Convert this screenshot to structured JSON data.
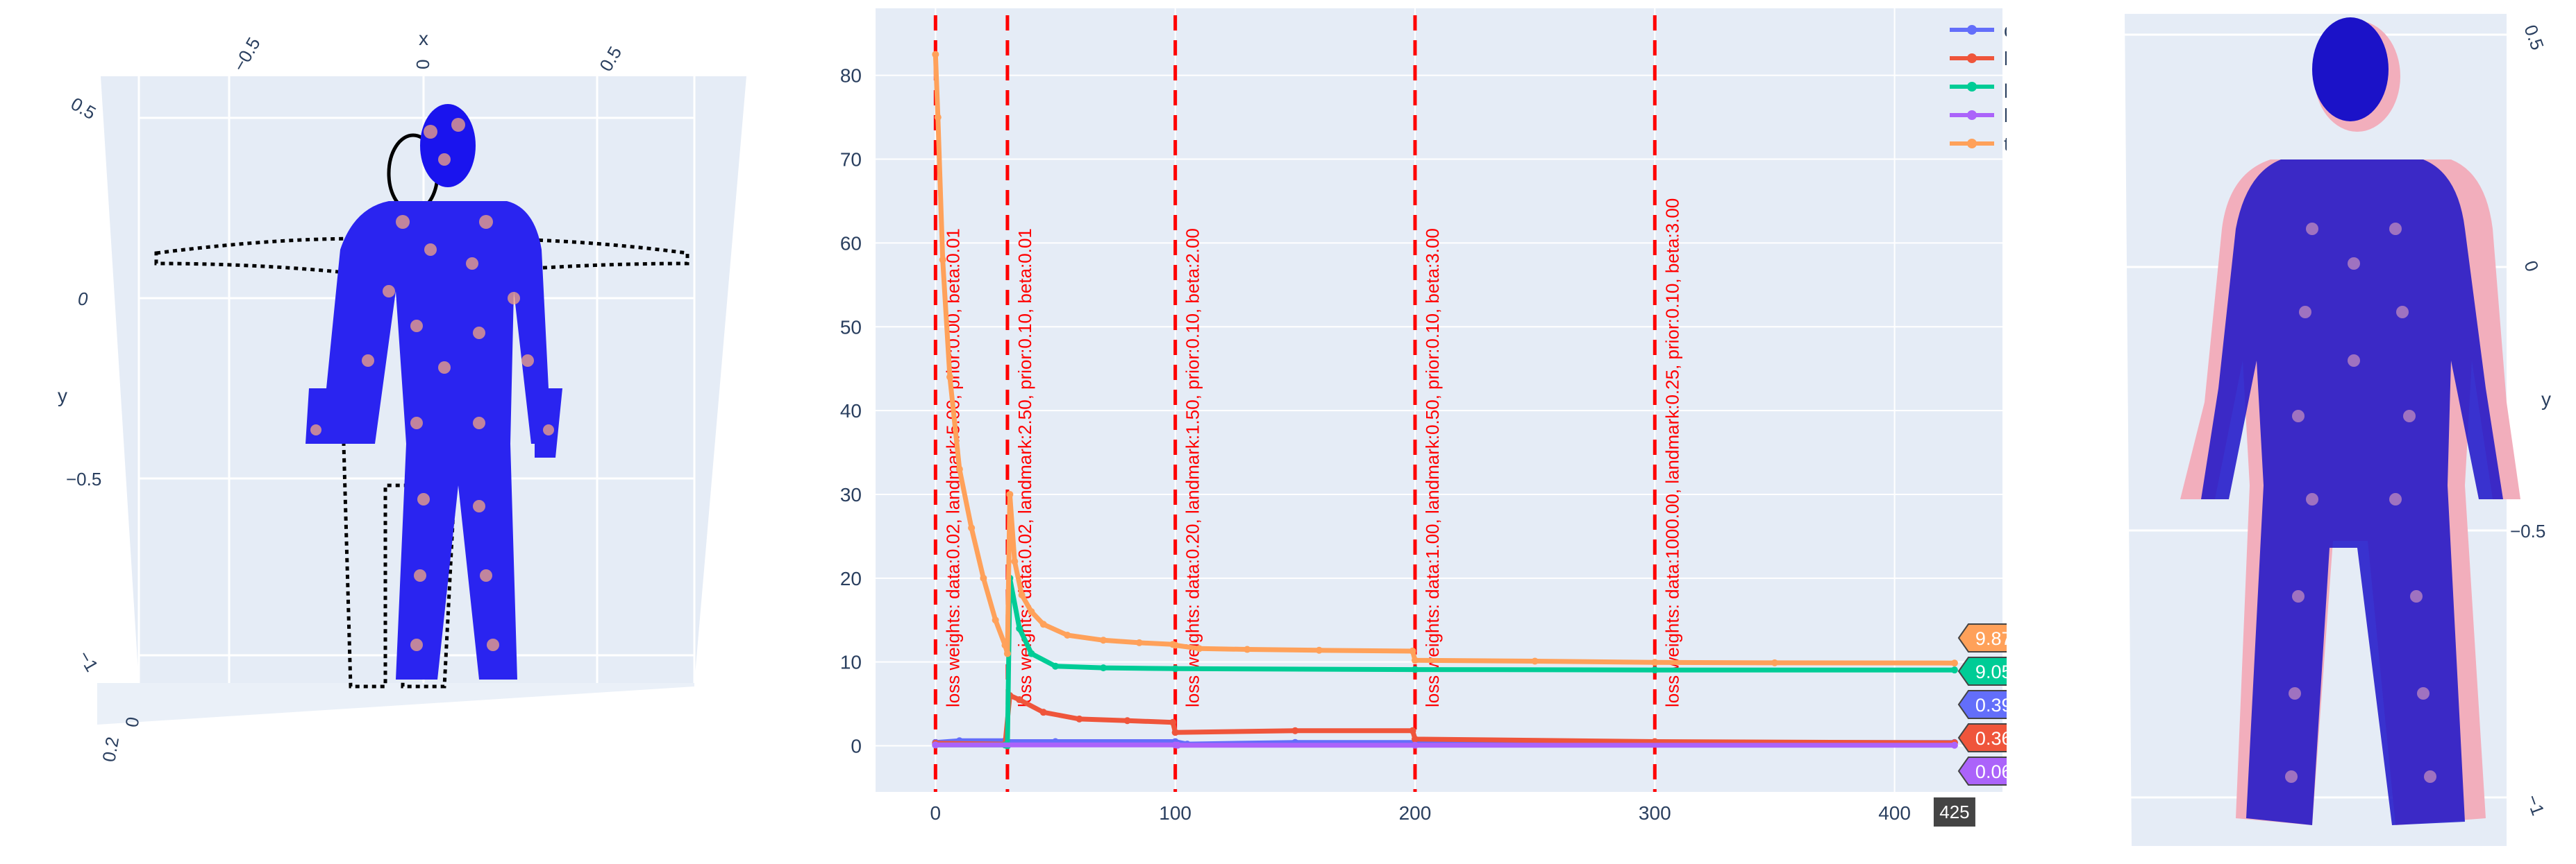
{
  "left_scene": {
    "x_title": "x",
    "y_title": "y",
    "x_ticks": [
      "−0.5",
      "0",
      "0.5"
    ],
    "y_ticks": [
      "0.5",
      "0",
      "−0.5",
      "−1"
    ],
    "z_ticks": [
      "0.2",
      "0"
    ],
    "colors": {
      "background": "#e5ecf6",
      "scan": "#000000",
      "model": "#1a14ee",
      "landmark": "#f4a582"
    }
  },
  "right_scene": {
    "y_title": "y",
    "y_ticks": [
      "0.5",
      "0",
      "−0.5",
      "−1"
    ],
    "colors": {
      "background": "#e5ecf6",
      "mesh": "#f2aebc",
      "points": "#1b12c8"
    }
  },
  "chart_data": {
    "type": "line",
    "x_range": [
      -25,
      445
    ],
    "y_range": [
      -5.5,
      88
    ],
    "x_ticks": [
      0,
      100,
      200,
      300,
      400
    ],
    "y_ticks": [
      0,
      10,
      20,
      30,
      40,
      50,
      60,
      70,
      80
    ],
    "x_label_extra": "425",
    "grid": true,
    "legend_placement": "top-right",
    "series": [
      {
        "name": "data",
        "color": "#636efa",
        "points": [
          [
            0,
            0.4
          ],
          [
            10,
            0.6
          ],
          [
            29,
            0.6
          ],
          [
            30,
            0.5
          ],
          [
            50,
            0.5
          ],
          [
            100,
            0.5
          ],
          [
            105,
            0.2
          ],
          [
            150,
            0.4
          ],
          [
            200,
            0.4
          ],
          [
            300,
            0.4
          ],
          [
            425,
            0.3926574
          ]
        ]
      },
      {
        "name": "landmark",
        "color": "#ef553b",
        "points": [
          [
            0,
            0.3
          ],
          [
            29,
            0.2
          ],
          [
            31,
            6
          ],
          [
            35,
            5.5
          ],
          [
            45,
            4
          ],
          [
            60,
            3.2
          ],
          [
            80,
            3
          ],
          [
            99,
            2.8
          ],
          [
            100,
            1.6
          ],
          [
            150,
            1.8
          ],
          [
            199,
            1.8
          ],
          [
            200,
            0.8
          ],
          [
            300,
            0.5
          ],
          [
            425,
            0.3607017
          ]
        ]
      },
      {
        "name": "prior",
        "color": "#00cc96",
        "points": [
          [
            0,
            0.1
          ],
          [
            29,
            0.1
          ],
          [
            30,
            0
          ],
          [
            31,
            20
          ],
          [
            35,
            14
          ],
          [
            40,
            11
          ],
          [
            50,
            9.5
          ],
          [
            70,
            9.3
          ],
          [
            100,
            9.2
          ],
          [
            200,
            9.1
          ],
          [
            300,
            9.05
          ],
          [
            425,
            9.050226
          ]
        ]
      },
      {
        "name": "beta",
        "color": "#ab63fa",
        "points": [
          [
            0,
            0.1
          ],
          [
            100,
            0.1
          ],
          [
            101,
            0.07
          ],
          [
            200,
            0.07
          ],
          [
            425,
            0.06672746
          ]
        ]
      },
      {
        "name": "total",
        "color": "#ffa15a",
        "points": [
          [
            0,
            82.5
          ],
          [
            1,
            75
          ],
          [
            3,
            58
          ],
          [
            6,
            44
          ],
          [
            10,
            33
          ],
          [
            15,
            26
          ],
          [
            20,
            20
          ],
          [
            25,
            15
          ],
          [
            29,
            12
          ],
          [
            30,
            11
          ],
          [
            31,
            30
          ],
          [
            33,
            22
          ],
          [
            36,
            18
          ],
          [
            40,
            16
          ],
          [
            45,
            14.5
          ],
          [
            55,
            13.2
          ],
          [
            70,
            12.6
          ],
          [
            85,
            12.3
          ],
          [
            99,
            12.1
          ],
          [
            100,
            12
          ],
          [
            110,
            11.6
          ],
          [
            130,
            11.5
          ],
          [
            160,
            11.4
          ],
          [
            199,
            11.3
          ],
          [
            200,
            10.2
          ],
          [
            250,
            10.1
          ],
          [
            300,
            9.95
          ],
          [
            350,
            9.9
          ],
          [
            425,
            9.87031
          ]
        ]
      }
    ],
    "vlines": [
      {
        "x": 0,
        "label": "loss weights: data:0.02, landmark:5.00, prior:0.00, beta:0.01"
      },
      {
        "x": 30,
        "label": "loss weights: data:0.02, landmark:2.50, prior:0.10, beta:0.01"
      },
      {
        "x": 100,
        "label": "loss weights: data:0.20, landmark:1.50, prior:0.10, beta:2.00"
      },
      {
        "x": 200,
        "label": "loss weights: data:1.00, landmark:0.50, prior:0.10, beta:3.00"
      },
      {
        "x": 300,
        "label": "loss weights: data:1000.00, landmark:0.25, prior:0.10, beta:3.00"
      }
    ],
    "hover_labels": [
      {
        "series": "total",
        "value": "9.87031"
      },
      {
        "series": "prior",
        "value": "9.050226"
      },
      {
        "series": "data",
        "value": "0.3926574"
      },
      {
        "series": "landmark",
        "value": "0.3607017"
      },
      {
        "series": "beta",
        "value": "0.06672746"
      }
    ]
  }
}
